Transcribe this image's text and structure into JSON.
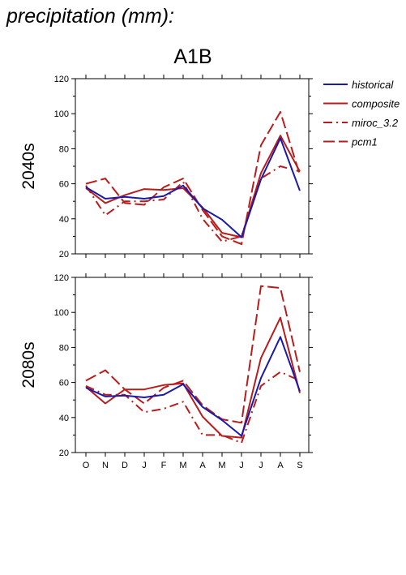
{
  "page": {
    "title": "precipitation (mm):",
    "scenario": "A1B"
  },
  "legend": {
    "placement": "right",
    "entries": [
      {
        "name": "historical",
        "color": "#1a1aaa",
        "dash": "solid"
      },
      {
        "name": "composite",
        "color": "#b81c1c",
        "dash": "solid"
      },
      {
        "name": "miroc_3.2",
        "color": "#b81c1c",
        "dash": "dash-dot"
      },
      {
        "name": "pcm1",
        "color": "#b81c1c",
        "dash": "dashed"
      }
    ]
  },
  "chart_data": [
    {
      "type": "line",
      "panel_label": "2040s",
      "categories": [
        "O",
        "N",
        "D",
        "J",
        "F",
        "M",
        "A",
        "M",
        "J",
        "J",
        "A",
        "S"
      ],
      "ylim": [
        20,
        120
      ],
      "yticks": [
        20,
        40,
        60,
        80,
        100,
        120
      ],
      "grid": false,
      "series": [
        {
          "name": "historical",
          "values": [
            58,
            51.5,
            52.5,
            51.5,
            53,
            59,
            46,
            39.5,
            29.5,
            62.5,
            86,
            56
          ]
        },
        {
          "name": "composite",
          "values": [
            57.5,
            49,
            53.5,
            57,
            56.5,
            57.5,
            46.5,
            32,
            29.5,
            66,
            87.5,
            67
          ]
        },
        {
          "name": "miroc_3.2",
          "values": [
            59,
            42,
            50,
            50,
            51,
            61,
            40,
            27,
            30,
            63,
            70,
            67
          ]
        },
        {
          "name": "pcm1",
          "values": [
            60,
            63,
            49,
            48,
            58,
            63,
            45,
            30,
            25.5,
            82,
            101,
            65
          ]
        }
      ]
    },
    {
      "type": "line",
      "panel_label": "2080s",
      "categories": [
        "O",
        "N",
        "D",
        "J",
        "F",
        "M",
        "A",
        "M",
        "J",
        "J",
        "A",
        "S"
      ],
      "ylim": [
        20,
        120
      ],
      "yticks": [
        20,
        40,
        60,
        80,
        100,
        120
      ],
      "grid": false,
      "series": [
        {
          "name": "historical",
          "values": [
            57,
            52,
            52.5,
            51.5,
            53,
            59,
            46,
            38.5,
            29.5,
            62.5,
            86,
            55
          ]
        },
        {
          "name": "composite",
          "values": [
            57.5,
            48,
            56,
            56,
            58.5,
            59.5,
            40.5,
            29.5,
            28.5,
            74,
            97,
            54
          ]
        },
        {
          "name": "miroc_3.2",
          "values": [
            58,
            53,
            53,
            43,
            45,
            49,
            30,
            30,
            25.5,
            58,
            66,
            61
          ]
        },
        {
          "name": "pcm1",
          "values": [
            61,
            67,
            56,
            48,
            57,
            61,
            47,
            39,
            37,
            115,
            114,
            66
          ]
        }
      ]
    }
  ]
}
